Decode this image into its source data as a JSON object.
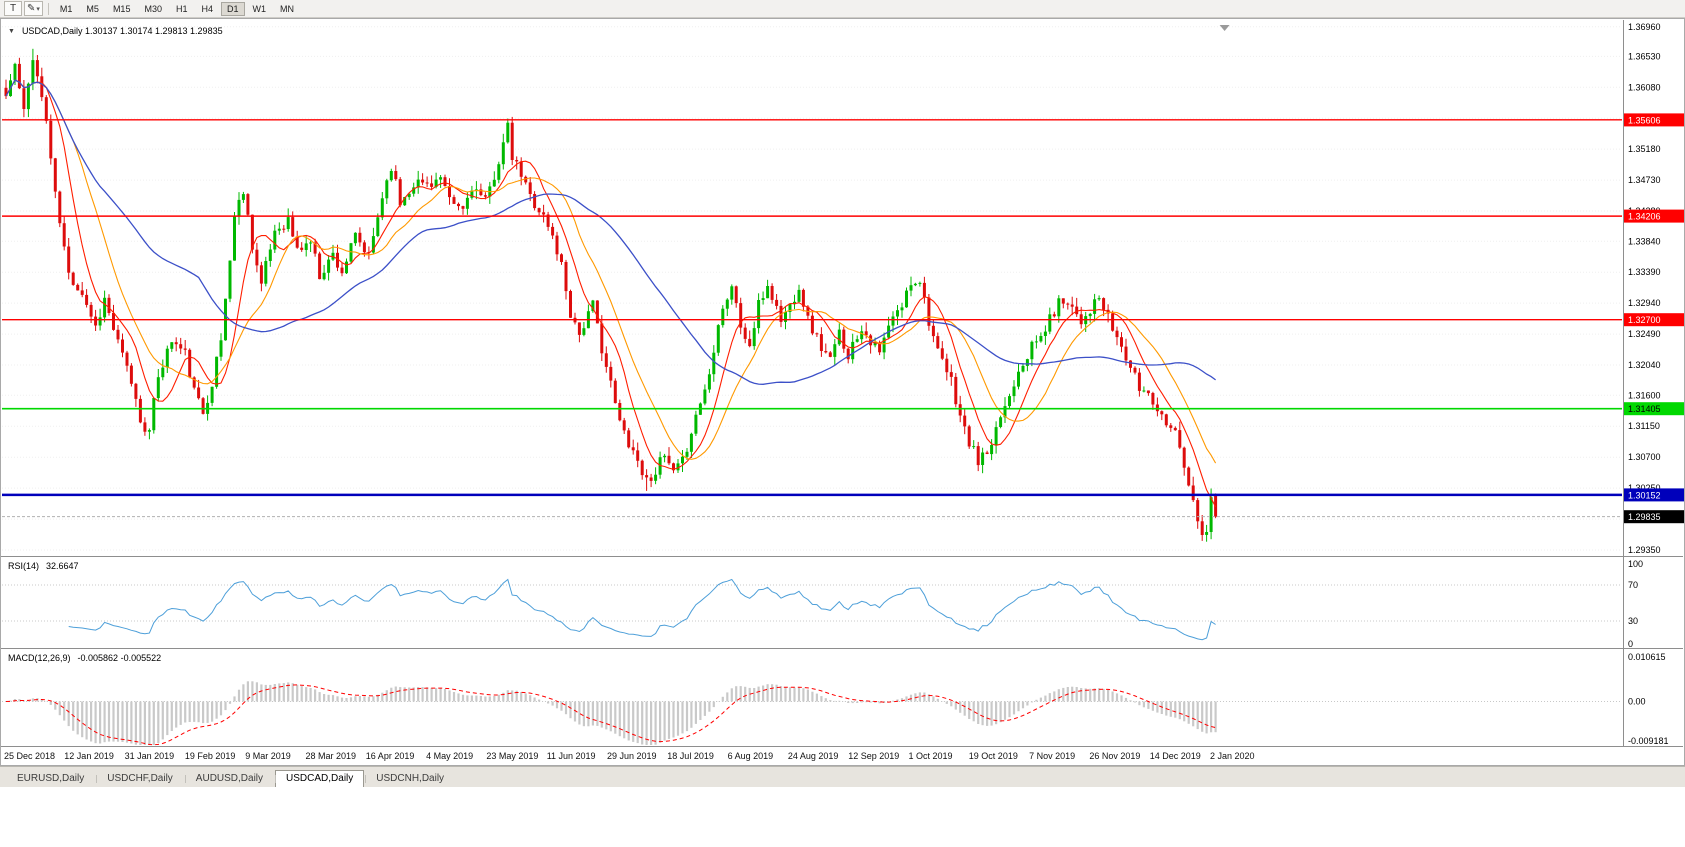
{
  "toolbar": {
    "tools": [
      {
        "name": "text-tool",
        "label": "T"
      },
      {
        "name": "draw-tool",
        "label": "✎",
        "caret": "▾"
      }
    ],
    "timeframes": [
      "M1",
      "M5",
      "M15",
      "M30",
      "H1",
      "H4",
      "D1",
      "W1",
      "MN"
    ],
    "active_timeframe": "D1"
  },
  "chart": {
    "collapse_icon": "▼",
    "symbol": "USDCAD,Daily",
    "header_text": "USDCAD,Daily 1.30137 1.30174 1.29813 1.29835",
    "ohlc": {
      "open": "1.30137",
      "high": "1.30174",
      "low": "1.29813",
      "close": "1.29835"
    },
    "price_axis": [
      "1.36960",
      "1.36530",
      "1.36080",
      "1.35630",
      "1.35180",
      "1.34730",
      "1.34280",
      "1.33840",
      "1.33390",
      "1.32940",
      "1.32490",
      "1.32040",
      "1.31600",
      "1.31150",
      "1.30700",
      "1.30250",
      "1.29800",
      "1.29350"
    ],
    "hlines": [
      {
        "price": 1.35606,
        "label": "1.35606",
        "color": "#ff0000",
        "text": "#ffffff",
        "width": 1.4
      },
      {
        "price": 1.34206,
        "label": "1.34206",
        "color": "#ff0000",
        "text": "#ffffff",
        "width": 1.4
      },
      {
        "price": 1.327,
        "label": "1.32700",
        "color": "#ff0000",
        "text": "#ffffff",
        "width": 1.4
      },
      {
        "price": 1.31405,
        "label": "1.31405",
        "color": "#00d800",
        "text": "#000000",
        "width": 1.6
      },
      {
        "price": 1.30152,
        "label": "1.30152",
        "color": "#0000bb",
        "text": "#ffffff",
        "width": 2.4
      }
    ],
    "current_price": {
      "value": 1.29835,
      "label": "1.29835",
      "badge_bg": "#000000",
      "badge_text": "#ffffff"
    }
  },
  "rsi": {
    "label": "RSI(14)",
    "value": "32.6647",
    "levels": [
      "100",
      "70",
      "30",
      "0"
    ],
    "color": "#4d9fd9"
  },
  "macd": {
    "label": "MACD(12,26,9)",
    "values": "-0.005862 -0.005522",
    "axis_top": "0.010615",
    "axis_zero": "0.00",
    "axis_bottom": "-0.009181",
    "hist_color": "#c9c9c9",
    "signal_color": "#ff0000"
  },
  "date_axis": [
    "25 Dec 2018",
    "12 Jan 2019",
    "31 Jan 2019",
    "19 Feb 2019",
    "9 Mar 2019",
    "28 Mar 2019",
    "16 Apr 2019",
    "4 May 2019",
    "23 May 2019",
    "11 Jun 2019",
    "29 Jun 2019",
    "18 Jul 2019",
    "6 Aug 2019",
    "24 Aug 2019",
    "12 Sep 2019",
    "1 Oct 2019",
    "19 Oct 2019",
    "7 Nov 2019",
    "26 Nov 2019",
    "14 Dec 2019",
    "2 Jan 2020"
  ],
  "tabs": [
    {
      "label": "EURUSD,Daily",
      "active": false
    },
    {
      "label": "USDCHF,Daily",
      "active": false
    },
    {
      "label": "AUDUSD,Daily",
      "active": false
    },
    {
      "label": "USDCAD,Daily",
      "active": true
    },
    {
      "label": "USDCNH,Daily",
      "active": false
    }
  ],
  "chart_data": {
    "type": "candlestick",
    "symbol": "USDCAD",
    "timeframe": "Daily",
    "bars": 271,
    "bar_step": 4.48,
    "seed": 11,
    "noise": 0.0009,
    "wick": 0.0013,
    "price_max": 1.37,
    "price_min": 1.29263,
    "macd_range": [
      -0.009181,
      0.010615
    ],
    "colors": {
      "up": "#00b800",
      "down": "#dd0c0c"
    },
    "mas": [
      {
        "period": 8,
        "color": "#ff1e00",
        "width": 1.1
      },
      {
        "period": 16,
        "color": "#ff9900",
        "width": 1.1
      },
      {
        "period": 44,
        "color": "#3c50c8",
        "width": 1.3
      }
    ],
    "last_bar": [
      1.30137,
      1.30174,
      1.29813,
      1.29835
    ],
    "pins": [
      {
        "i": 6,
        "h": 1.3664
      },
      {
        "i": 112,
        "h": 1.3559
      },
      {
        "i": 32,
        "l": 1.3096
      },
      {
        "i": 143,
        "l": 1.3021
      },
      {
        "i": 217,
        "l": 1.3058
      },
      {
        "i": 268,
        "l": 1.295
      }
    ],
    "waypoints": [
      [
        0,
        1.3595
      ],
      [
        2,
        1.364
      ],
      [
        4,
        1.357
      ],
      [
        6,
        1.3655
      ],
      [
        9,
        1.356
      ],
      [
        11,
        1.345
      ],
      [
        14,
        1.3335
      ],
      [
        17,
        1.331
      ],
      [
        20,
        1.326
      ],
      [
        22,
        1.33
      ],
      [
        25,
        1.3235
      ],
      [
        28,
        1.318
      ],
      [
        30,
        1.3125
      ],
      [
        32,
        1.3105
      ],
      [
        34,
        1.319
      ],
      [
        37,
        1.324
      ],
      [
        40,
        1.322
      ],
      [
        42,
        1.3165
      ],
      [
        44,
        1.3135
      ],
      [
        46,
        1.318
      ],
      [
        48,
        1.324
      ],
      [
        51,
        1.342
      ],
      [
        53,
        1.346
      ],
      [
        55,
        1.338
      ],
      [
        57,
        1.332
      ],
      [
        60,
        1.34
      ],
      [
        63,
        1.3415
      ],
      [
        65,
        1.337
      ],
      [
        68,
        1.3385
      ],
      [
        70,
        1.3335
      ],
      [
        73,
        1.3365
      ],
      [
        75,
        1.334
      ],
      [
        78,
        1.339
      ],
      [
        81,
        1.336
      ],
      [
        84,
        1.345
      ],
      [
        86,
        1.3495
      ],
      [
        88,
        1.344
      ],
      [
        91,
        1.347
      ],
      [
        94,
        1.3468
      ],
      [
        97,
        1.3475
      ],
      [
        99,
        1.344
      ],
      [
        102,
        1.343
      ],
      [
        104,
        1.3465
      ],
      [
        107,
        1.344
      ],
      [
        109,
        1.348
      ],
      [
        112,
        1.3548
      ],
      [
        113,
        1.3505
      ],
      [
        115,
        1.348
      ],
      [
        117,
        1.345
      ],
      [
        120,
        1.342
      ],
      [
        122,
        1.339
      ],
      [
        124,
        1.335
      ],
      [
        126,
        1.328
      ],
      [
        128,
        1.325
      ],
      [
        131,
        1.329
      ],
      [
        133,
        1.323
      ],
      [
        135,
        1.3175
      ],
      [
        137,
        1.312
      ],
      [
        140,
        1.308
      ],
      [
        143,
        1.3035
      ],
      [
        145,
        1.3052
      ],
      [
        147,
        1.307
      ],
      [
        149,
        1.3045
      ],
      [
        151,
        1.3062
      ],
      [
        153,
        1.311
      ],
      [
        155,
        1.315
      ],
      [
        157,
        1.319
      ],
      [
        159,
        1.327
      ],
      [
        162,
        1.332
      ],
      [
        164,
        1.326
      ],
      [
        166,
        1.323
      ],
      [
        168,
        1.329
      ],
      [
        170,
        1.332
      ],
      [
        173,
        1.327
      ],
      [
        175,
        1.329
      ],
      [
        177,
        1.332
      ],
      [
        179,
        1.327
      ],
      [
        182,
        1.323
      ],
      [
        184,
        1.321
      ],
      [
        186,
        1.325
      ],
      [
        188,
        1.322
      ],
      [
        191,
        1.326
      ],
      [
        193,
        1.324
      ],
      [
        195,
        1.322
      ],
      [
        197,
        1.326
      ],
      [
        200,
        1.329
      ],
      [
        202,
        1.3325
      ],
      [
        204,
        1.333
      ],
      [
        206,
        1.327
      ],
      [
        208,
        1.322
      ],
      [
        211,
        1.318
      ],
      [
        213,
        1.313
      ],
      [
        215,
        1.309
      ],
      [
        217,
        1.3065
      ],
      [
        220,
        1.308
      ],
      [
        222,
        1.313
      ],
      [
        224,
        1.316
      ],
      [
        226,
        1.32
      ],
      [
        229,
        1.323
      ],
      [
        231,
        1.3245
      ],
      [
        233,
        1.327
      ],
      [
        235,
        1.3295
      ],
      [
        237,
        1.33
      ],
      [
        240,
        1.327
      ],
      [
        242,
        1.3285
      ],
      [
        244,
        1.33
      ],
      [
        246,
        1.327
      ],
      [
        249,
        1.323
      ],
      [
        251,
        1.32
      ],
      [
        253,
        1.317
      ],
      [
        255,
        1.3165
      ],
      [
        258,
        1.313
      ],
      [
        260,
        1.312
      ],
      [
        262,
        1.309
      ],
      [
        264,
        1.303
      ],
      [
        266,
        1.2975
      ],
      [
        267,
        1.2955
      ],
      [
        268,
        1.2958
      ],
      [
        269,
        1.3014
      ],
      [
        270,
        1.29835
      ]
    ]
  }
}
